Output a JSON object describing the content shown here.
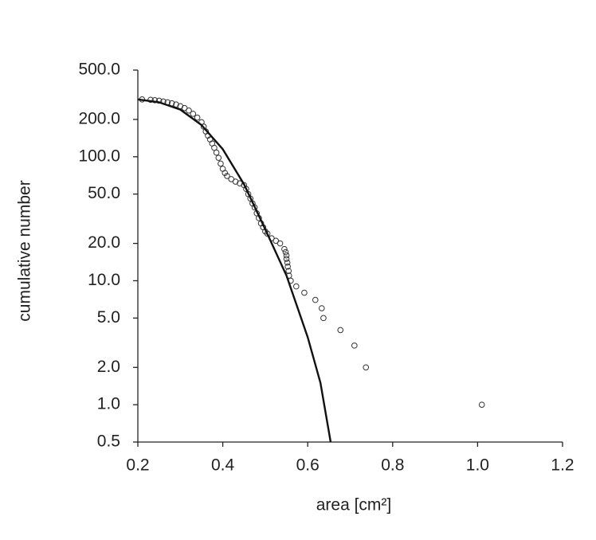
{
  "chart_data": {
    "type": "scatter",
    "xlabel": "area [cm²]",
    "ylabel": "cumulative number",
    "xlim": [
      0.2,
      1.2
    ],
    "ylim": [
      0.5,
      500
    ],
    "ylog": true,
    "grid": false,
    "xticks": [
      0.2,
      0.4,
      0.6,
      0.8,
      {
        "value": 1,
        "label": "1.0"
      },
      1.2
    ],
    "yticks": [
      {
        "value": 500,
        "label": "500.0"
      },
      {
        "value": 200,
        "label": "200.0"
      },
      {
        "value": 100,
        "label": "100.0"
      },
      {
        "value": 50,
        "label": "50.0"
      },
      {
        "value": 20,
        "label": "20.0"
      },
      {
        "value": 10,
        "label": "10.0"
      },
      {
        "value": 5,
        "label": "5.0"
      },
      {
        "value": 2,
        "label": "2.0"
      },
      {
        "value": 1,
        "label": "1.0"
      },
      0.5
    ],
    "series": [
      {
        "mode": "markers",
        "color": "#333333",
        "x": [
          0.21,
          0.23,
          0.24,
          0.25,
          0.26,
          0.27,
          0.28,
          0.29,
          0.3,
          0.31,
          0.32,
          0.33,
          0.34,
          0.35,
          0.355,
          0.36,
          0.365,
          0.37,
          0.375,
          0.38,
          0.385,
          0.39,
          0.395,
          0.4,
          0.405,
          0.41,
          0.42,
          0.43,
          0.44,
          0.45,
          0.455,
          0.46,
          0.465,
          0.47,
          0.475,
          0.48,
          0.485,
          0.49,
          0.495,
          0.5,
          0.505,
          0.515,
          0.525,
          0.535,
          0.545,
          0.548,
          0.55,
          0.55,
          0.552,
          0.553,
          0.555,
          0.556,
          0.56,
          0.573,
          0.592,
          0.618,
          0.633,
          0.637,
          0.677,
          0.71,
          0.737,
          1.01
        ],
        "values": [
          290,
          288,
          286,
          283,
          279,
          275,
          270,
          264,
          256,
          247,
          236,
          222,
          207,
          190,
          175,
          160,
          148,
          138,
          128,
          118,
          108,
          98,
          88,
          80,
          74,
          70,
          66,
          63,
          61,
          59,
          55,
          50,
          46,
          42,
          39,
          35,
          32,
          29,
          27,
          25,
          24,
          22,
          21,
          20,
          18,
          17,
          16,
          15,
          14,
          13,
          12,
          11,
          10,
          9,
          8,
          7,
          6,
          5,
          4,
          3,
          2,
          1
        ]
      },
      {
        "mode": "line",
        "color": "#111111",
        "x": [
          0.2,
          0.25,
          0.3,
          0.35,
          0.4,
          0.45,
          0.5,
          0.55,
          0.6,
          0.63,
          0.654
        ],
        "values": [
          290,
          275,
          240,
          180,
          115,
          60,
          26,
          11,
          3.5,
          1.5,
          0.5
        ]
      }
    ]
  }
}
